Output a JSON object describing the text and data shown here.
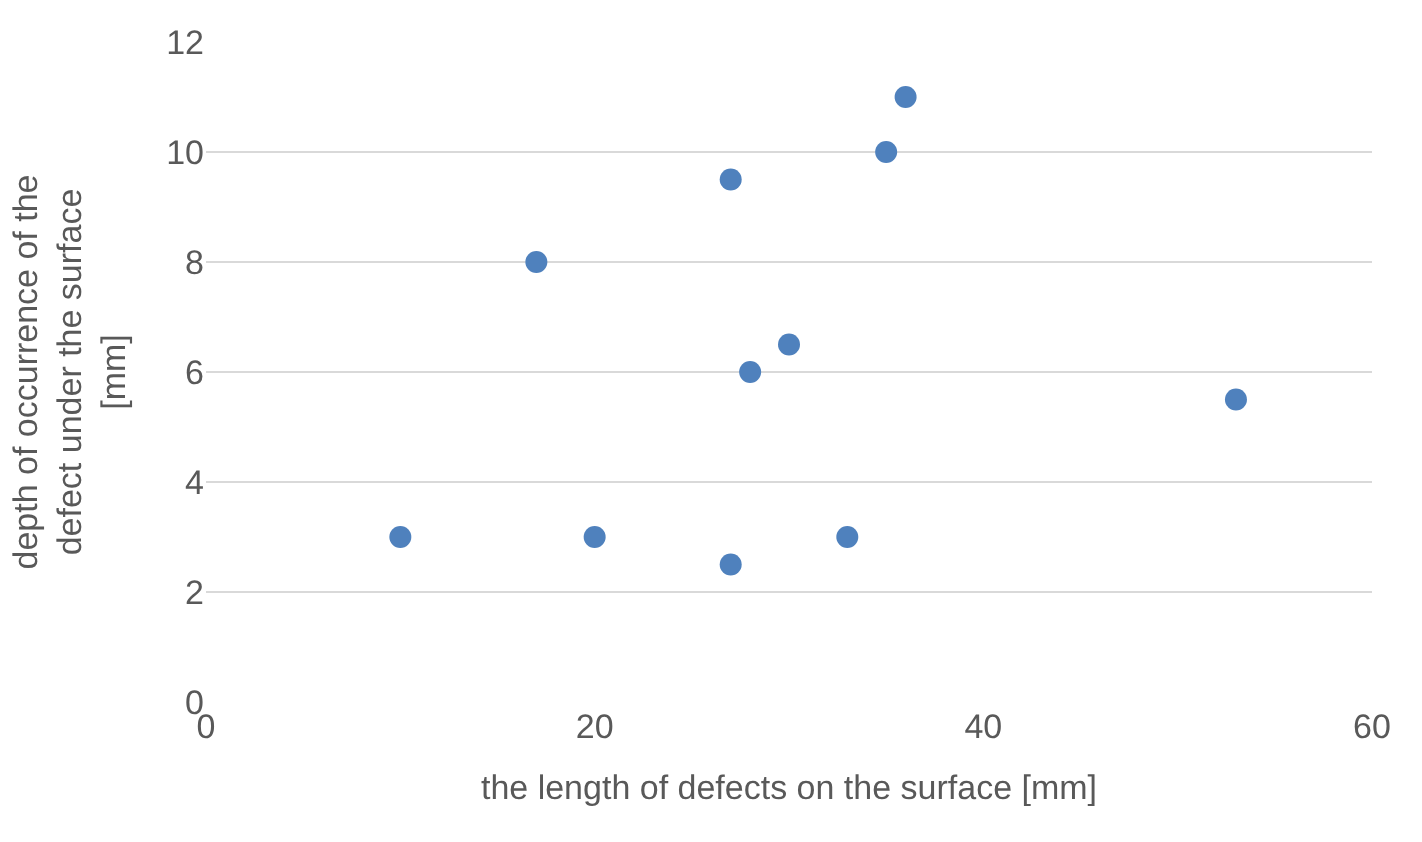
{
  "chart_data": {
    "type": "scatter",
    "xlabel": "the length of defects on the surface [mm]",
    "ylabel": "depth of occurrence of the\ndefect under the surface\n[mm]",
    "x": [
      10,
      20,
      27,
      33,
      17,
      27,
      28,
      30,
      35,
      36,
      53
    ],
    "series": [
      {
        "color": "#4f81bd",
        "values": [
          3,
          3,
          2.5,
          3,
          8,
          9.5,
          6,
          6.5,
          10,
          11,
          5.5
        ]
      }
    ],
    "xlim": [
      0,
      60
    ],
    "xticks": [
      0,
      20,
      40,
      60
    ],
    "ylim": [
      0,
      12
    ],
    "yticks": [
      0,
      2,
      4,
      6,
      8,
      10,
      12
    ],
    "grid": "y",
    "marker": "circle"
  }
}
